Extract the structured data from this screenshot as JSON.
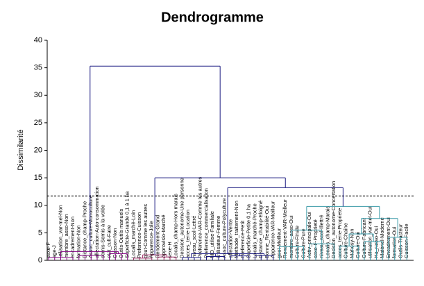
{
  "chart_data": {
    "type": "dendrogram",
    "title": "Dendrogramme",
    "y_label": "Dissimilarité",
    "ylim": [
      0,
      40
    ],
    "yticks": [
      0,
      5,
      10,
      15,
      20,
      25,
      30,
      35,
      40
    ],
    "cut_height": 11.7,
    "tree": {
      "height": 35.3,
      "color": "#1a1a80",
      "children": [
        {
          "height": 1.6,
          "color": "#800080",
          "children": [
            {
              "height": 0.5,
              "children": [
                {
                  "label": "sexe-F"
                },
                {
                  "label": "age-J"
                },
                {
                  "label": "utilisation_var-mel-Non"
                },
                {
                  "label": "membre_asso-Non"
                },
                {
                  "label": "encadrement-Non"
                }
              ]
            },
            {
              "height": 0.9,
              "children": [
                {
                  "label": "formation-Non"
                },
                {
                  "label": "Distance_champ-Proche"
                },
                {
                  "label": "Assoc_culture-Monoculture"
                },
                {
                  "label": "affectation-Auto-consommation"
                },
                {
                  "label": "semis-Semis à la volée"
                }
              ]
            },
            {
              "height": 1.2,
              "children": [
                {
                  "label": "etat_cult-Faire"
                },
                {
                  "label": "Cuisson-Non"
                },
                {
                  "label": "Outils-Outils manuels"
                },
                {
                  "label": "Superficie-Grande 0,1 à 1 ha"
                }
              ]
            }
          ]
        },
        {
          "height": 15,
          "children": [
            {
              "height": 1.0,
              "color": "#a0306a",
              "children": [
                {
                  "height": 0.4,
                  "children": [
                    {
                      "label": "Localis_marché-Loin"
                    },
                    {
                      "label": "Preference-Cuisson"
                    },
                    {
                      "label": "gout-Comme les autres"
                    },
                    {
                      "label": "Apparence-Jolie"
                    }
                  ]
                },
                {
                  "height": 0.6,
                  "children": [
                    {
                      "label": "Rendement-Grand"
                    },
                    {
                      "label": "Approvisio-Marché"
                    },
                    {
                      "label": "sexe-H"
                    },
                    {
                      "label": "Localis_champ-Hors marais"
                    }
                  ]
                }
              ]
            },
            {
              "height": 13.2,
              "children": [
                {
                  "height": 1.2,
                  "children": [
                    {
                      "height": 0.5,
                      "children": [
                        {
                          "label": "Decision_autonome-Une personne"
                        },
                        {
                          "label": "acces_terre-Location"
                        },
                        {
                          "label": "niveau_scol-Lettré"
                        },
                        {
                          "label": "Preference-VAR-Comme les autres"
                        }
                      ]
                    },
                    {
                      "height": 0.7,
                      "children": [
                        {
                          "label": "Preference_commercialisation"
                        },
                        {
                          "label": "MO_utilise-Familiale"
                        },
                        {
                          "label": "Utilisateur-Femme"
                        },
                        {
                          "label": "Assoc_culture-Polyculture"
                        }
                      ]
                    },
                    {
                      "height": 0.8,
                      "children": [
                        {
                          "label": "affectation-Vente"
                        },
                        {
                          "label": "Methode_traitement-Non"
                        },
                        {
                          "label": "Preference-Petit"
                        },
                        {
                          "label": "Superficie-Petite 0,1 ha"
                        }
                      ]
                    },
                    {
                      "height": 0.9,
                      "children": [
                        {
                          "label": "Localis_marché-Proche"
                        },
                        {
                          "label": "Distance_champ-Eloigné"
                        },
                        {
                          "label": "Bonne_Rentabilité-Oui"
                        },
                        {
                          "label": "Apparence-VAR-Meilleur"
                        }
                      ]
                    }
                  ]
                },
                {
                  "height": 9.8,
                  "color": "#3a9aa8",
                  "children": [
                    {
                      "height": 5.5,
                      "children": [
                        {
                          "height": 2.5,
                          "children": [
                            {
                              "label": "gout-Meilleur"
                            },
                            {
                              "label": "Rendement-VAR-Meilleur"
                            },
                            {
                              "label": "membre_asso-Oui"
                            },
                            {
                              "label": "Culture-Finale"
                            },
                            {
                              "label": "Culture-Pure"
                            }
                          ]
                        },
                        {
                          "height": 3.0,
                          "children": [
                            {
                              "label": "Activ_principale-Oui"
                            },
                            {
                              "label": "sexe-F-Proprieté"
                            },
                            {
                              "label": "niveau_scol-Illettré"
                            },
                            {
                              "label": "Localis_champ-Marais"
                            },
                            {
                              "label": "Decision_autonome-Concertation"
                            }
                          ]
                        }
                      ]
                    },
                    {
                      "height": 7.6,
                      "children": [
                        {
                          "height": 4.8,
                          "children": [
                            {
                              "height": 2.6,
                              "children": [
                                {
                                  "label": "acces_terre-Propriete"
                                },
                                {
                                  "label": "Culture-Chaîne"
                                },
                                {
                                  "label": "Mahosy-Non"
                                },
                                {
                                  "label": "Culture-Oui"
                                }
                              ]
                            },
                            {
                              "height": 3.4,
                              "children": [
                                {
                                  "label": "Culture-Fabricant"
                                },
                                {
                                  "label": "utilisation_var-mel-Oui"
                                },
                                {
                                  "label": "Ha_rasso-Oui"
                                },
                                {
                                  "label": "Matériel-Moderne"
                                }
                              ]
                            }
                          ]
                        },
                        {
                          "height": 4.2,
                          "children": [
                            {
                              "label": "Encadrement-Oui"
                            },
                            {
                              "label": "formation-Oui"
                            },
                            {
                              "label": "Outils-Tracteur"
                            },
                            {
                              "label": "Cuisson-Facile"
                            }
                          ]
                        }
                      ]
                    }
                  ]
                }
              ]
            }
          ]
        }
      ]
    }
  }
}
